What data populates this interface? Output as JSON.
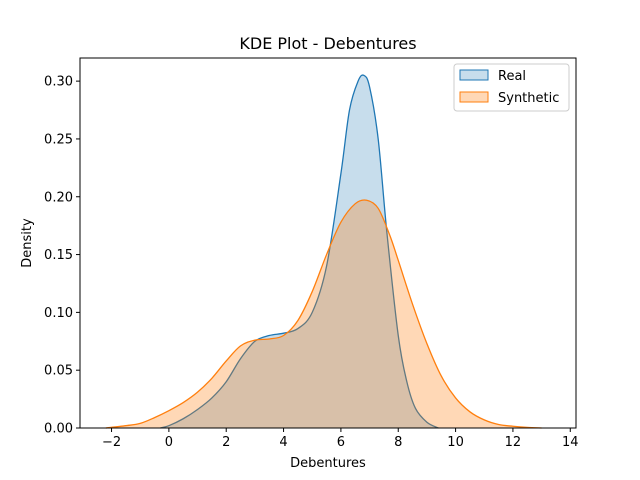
{
  "chart_data": {
    "type": "area",
    "title": "KDE Plot - Debentures",
    "xlabel": "Debentures",
    "ylabel": "Density",
    "xlim": [
      -3.1,
      14.2
    ],
    "ylim": [
      0,
      0.32
    ],
    "xticks": [
      -2,
      0,
      2,
      4,
      6,
      8,
      10,
      12,
      14
    ],
    "yticks": [
      0.0,
      0.05,
      0.1,
      0.15,
      0.2,
      0.25,
      0.3
    ],
    "ytick_labels": [
      "0.00",
      "0.05",
      "0.10",
      "0.15",
      "0.20",
      "0.25",
      "0.30"
    ],
    "legend": {
      "placement": "top-right"
    },
    "grid": false,
    "series": [
      {
        "name": "Real",
        "color": "#1f77b4",
        "fill_opacity": 0.25,
        "x": [
          -0.3,
          0.0,
          0.5,
          1.0,
          1.5,
          2.0,
          2.5,
          3.0,
          3.5,
          4.0,
          4.5,
          5.0,
          5.5,
          6.0,
          6.3,
          6.6,
          6.8,
          7.0,
          7.3,
          7.6,
          8.0,
          8.3,
          8.6,
          9.0,
          9.4
        ],
        "values": [
          0.0,
          0.002,
          0.008,
          0.016,
          0.026,
          0.04,
          0.06,
          0.075,
          0.08,
          0.082,
          0.086,
          0.1,
          0.14,
          0.22,
          0.275,
          0.3,
          0.305,
          0.295,
          0.25,
          0.17,
          0.08,
          0.04,
          0.017,
          0.005,
          0.0
        ]
      },
      {
        "name": "Synthetic",
        "color": "#ff7f0e",
        "fill_opacity": 0.3,
        "x": [
          -2.2,
          -1.5,
          -1.0,
          -0.5,
          0.0,
          0.5,
          1.0,
          1.5,
          2.0,
          2.5,
          3.0,
          3.5,
          4.0,
          4.5,
          5.0,
          5.5,
          6.0,
          6.5,
          6.9,
          7.3,
          7.7,
          8.0,
          8.5,
          9.0,
          9.5,
          10.0,
          10.5,
          11.0,
          11.5,
          12.0,
          12.5,
          13.0
        ],
        "values": [
          0.0,
          0.002,
          0.004,
          0.009,
          0.015,
          0.022,
          0.031,
          0.043,
          0.058,
          0.071,
          0.076,
          0.077,
          0.08,
          0.093,
          0.118,
          0.15,
          0.178,
          0.194,
          0.197,
          0.19,
          0.167,
          0.145,
          0.107,
          0.073,
          0.045,
          0.026,
          0.014,
          0.007,
          0.003,
          0.0015,
          0.0005,
          0.0
        ]
      }
    ]
  }
}
